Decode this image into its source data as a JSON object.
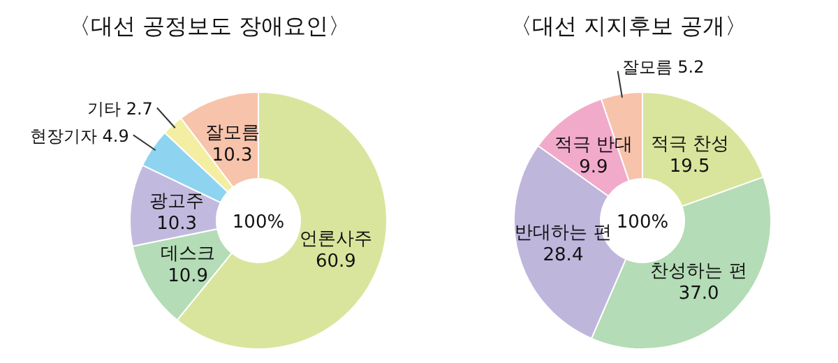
{
  "chart_data": [
    {
      "type": "donut",
      "title": "〈대선 공정보도 장애요인〉",
      "categories": [
        "언론사주",
        "데스크",
        "광고주",
        "현장기자",
        "기타",
        "잘모름"
      ],
      "values": [
        60.9,
        10.9,
        10.3,
        4.9,
        2.7,
        10.3
      ],
      "value_labels": [
        "60.9",
        "10.9",
        "10.3",
        "4.9",
        "2.7",
        "10.3"
      ],
      "colors": [
        "#d9e59c",
        "#b4dcb6",
        "#c2bade",
        "#8ed4f0",
        "#f3eea2",
        "#f7c3ab"
      ],
      "annotations": [
        "100%"
      ]
    },
    {
      "type": "donut",
      "title": "〈대선 지지후보 공개〉",
      "categories": [
        "적극 찬성",
        "찬성하는 편",
        "반대하는 편",
        "적극 반대",
        "잘모름"
      ],
      "values": [
        19.5,
        37.0,
        28.4,
        9.9,
        5.2
      ],
      "value_labels": [
        "19.5",
        "37.0",
        "28.4",
        "9.9",
        "5.2"
      ],
      "colors": [
        "#d9e59c",
        "#b4dcb6",
        "#bfb6dc",
        "#f2aacb",
        "#f7c3ab"
      ],
      "annotations": [
        "100%"
      ]
    }
  ]
}
